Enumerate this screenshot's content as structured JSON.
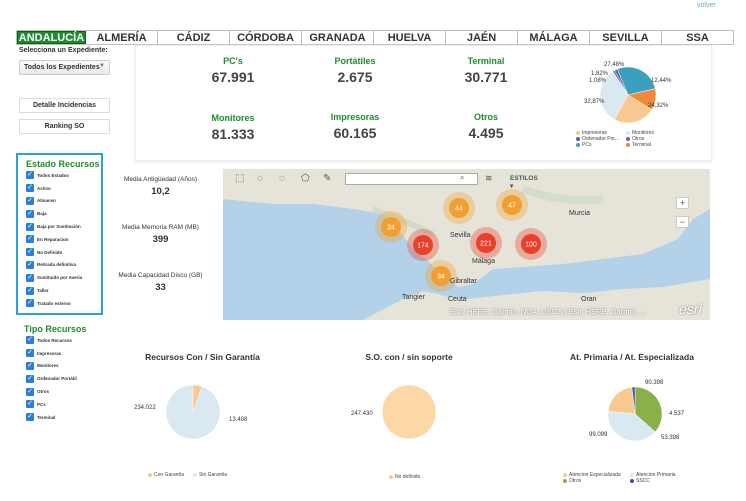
{
  "header": {
    "volver": "volver"
  },
  "tabs": [
    "ANDALUCÍA",
    "ALMERÍA",
    "CÁDIZ",
    "CÓRDOBA",
    "GRANADA",
    "HUELVA",
    "JAÉN",
    "MÁLAGA",
    "SEVILLA",
    "SSA"
  ],
  "active_tab": "ANDALUCÍA",
  "sidebar": {
    "select_label": "Selecciona un Expediente:",
    "select_value": "Todos los Expedientes",
    "btn_detalle": "Detalle Incidencias",
    "btn_ranking": "Ranking SO"
  },
  "estado": {
    "title": "Estado Recursos",
    "items": [
      "Todos Estados",
      "Activo",
      "Almacen",
      "Baja",
      "Baja por Sustitución",
      "En Reparacion",
      "No Definido",
      "Retirada definitiva",
      "Sustituido por Averia",
      "Taller",
      "Tratado externo"
    ]
  },
  "tipo": {
    "title": "Tipo Recursos",
    "items": [
      "Todos Recursos",
      "Impresoras",
      "Monitores",
      "Ordenador Portátil",
      "Otros",
      "PCs",
      "Terminal"
    ]
  },
  "kpis": [
    {
      "title": "PC's",
      "value": "67.991"
    },
    {
      "title": "Portátiles",
      "value": "2.675"
    },
    {
      "title": "Terminal",
      "value": "30.771"
    },
    {
      "title": "Monitores",
      "value": "81.333"
    },
    {
      "title": "Impresoras",
      "value": "60.165"
    },
    {
      "title": "Otros",
      "value": "4.495"
    }
  ],
  "pie_top": {
    "labels": [
      "27,48%",
      "1,82%",
      "1,08%",
      "12,44%",
      "32,87%",
      "24,32%"
    ],
    "legend": [
      "Impresoras",
      "Monitores",
      "Ordenador Por...",
      "Otros",
      "PCs",
      "Terminal"
    ],
    "colors": {
      "impresoras": "#f7c98e",
      "monitores": "#d9e8f1",
      "ordenador": "#3b6ea8",
      "otros": "#7a5aa8",
      "pcs": "#3ba0c0",
      "terminal": "#f08a3a"
    }
  },
  "stats": [
    {
      "title": "Media Antigüedad (Años)",
      "value": "10,2"
    },
    {
      "title": "Media Memoria RAM (MB)",
      "value": "399"
    },
    {
      "title": "Media Capacidad Disco (GB)",
      "value": "33"
    }
  ],
  "map": {
    "search_placeholder": "",
    "estilos": "ESTILOS",
    "attribution": "Esri, HERE, Garmin, NGA, USGS | Esri, HERE, Garmin, ...",
    "esri": "esri",
    "places": [
      "Murcia",
      "Sevilla",
      "Málaga",
      "Gibraltar",
      "Tangier",
      "Ceuta",
      "Oran"
    ],
    "clusters": [
      {
        "count": "24",
        "color": "#f0a030"
      },
      {
        "count": "44",
        "color": "#f0a030"
      },
      {
        "count": "47",
        "color": "#f0a030"
      },
      {
        "count": "174",
        "color": "#e8402a"
      },
      {
        "count": "221",
        "color": "#e8402a"
      },
      {
        "count": "100",
        "color": "#e8402a"
      },
      {
        "count": "34",
        "color": "#f0a030"
      }
    ]
  },
  "charts_bottom": [
    {
      "title": "Recursos Con / Sin Garantía",
      "labels": [
        "234.022",
        "13.408"
      ],
      "legend": [
        "Con Garantía",
        "Sin Garantía"
      ]
    },
    {
      "title": "S.O. con / sin soporte",
      "labels": [
        "247.430"
      ],
      "legend": [
        "No definido"
      ]
    },
    {
      "title": "At. Primaria / At. Especializada",
      "labels": [
        "90.398",
        "4.537",
        "53.398",
        "99.099"
      ],
      "legend": [
        "Atencion Especializada",
        "Atencion Primaria",
        "Otros",
        "SSCC"
      ]
    }
  ],
  "chart_data": [
    {
      "type": "pie",
      "title": "",
      "categories": [
        "Impresoras",
        "Monitores",
        "Ordenador Portátil",
        "Otros",
        "PCs",
        "Terminal"
      ],
      "values": [
        24.32,
        32.87,
        1.08,
        1.82,
        27.48,
        12.44
      ]
    },
    {
      "type": "pie",
      "title": "Recursos Con / Sin Garantía",
      "categories": [
        "Con Garantía",
        "Sin Garantía"
      ],
      "values": [
        234022,
        13408
      ]
    },
    {
      "type": "pie",
      "title": "S.O. con / sin soporte",
      "categories": [
        "No definido"
      ],
      "values": [
        247430
      ]
    },
    {
      "type": "pie",
      "title": "At. Primaria / At. Especializada",
      "categories": [
        "Atencion Especializada",
        "Atencion Primaria",
        "Otros",
        "SSCC"
      ],
      "values": [
        90398,
        99099,
        53398,
        4537
      ]
    }
  ]
}
